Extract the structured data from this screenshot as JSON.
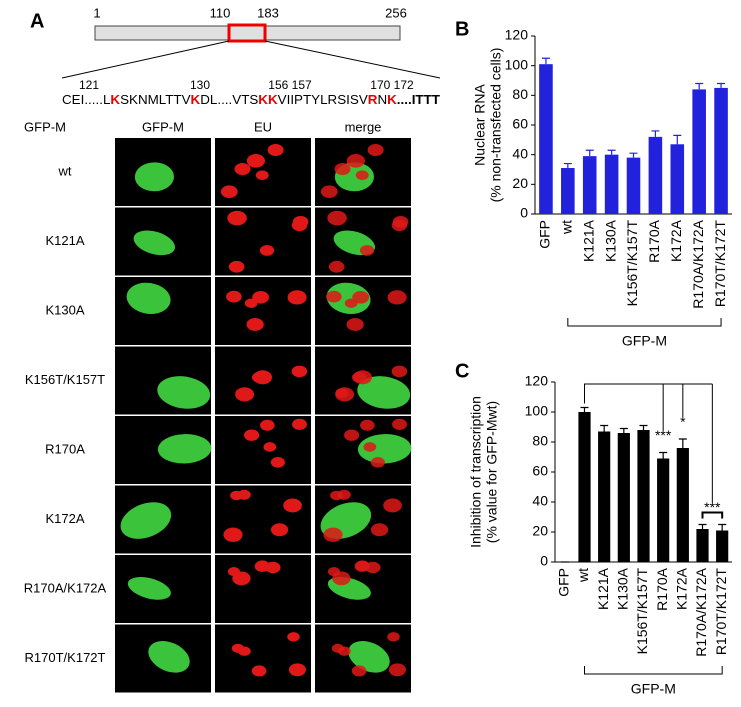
{
  "panel_a": {
    "label": "A",
    "ruler_labels": [
      "1",
      "110",
      "183",
      "256"
    ],
    "sequence_numbers": [
      "121",
      "130",
      "156 157",
      "170 172"
    ],
    "sequence": [
      {
        "text": "CEI.....L"
      },
      {
        "text": "K",
        "highlight": true
      },
      {
        "text": "SKNMLTTV"
      },
      {
        "text": "K",
        "highlight": true
      },
      {
        "text": "DL....VTS"
      },
      {
        "text": "KK",
        "highlight": true
      },
      {
        "text": "VIIPTYLRSISV"
      },
      {
        "text": "R",
        "highlight": true
      },
      {
        "text": "N"
      },
      {
        "text": "K",
        "highlight": true
      },
      {
        "text": "....ITTT",
        "bold": true
      }
    ],
    "row_header": "GFP-M",
    "columns": [
      "GFP-M",
      "EU",
      "merge"
    ],
    "rows": [
      "wt",
      "K121A",
      "K130A",
      "K156T/K157T",
      "R170A",
      "K172A",
      "R170A/K172A",
      "R170T/K172T"
    ]
  },
  "chart_data": [
    {
      "type": "bar",
      "label": "B",
      "ylabel": [
        "Nuclear RNA",
        "(% non-transfected cells)"
      ],
      "categories": [
        "GFP",
        "wt",
        "K121A",
        "K130A",
        "K156T/K157T",
        "R170A",
        "K172A",
        "R170A/K172A",
        "R170T/K172T"
      ],
      "values": [
        101,
        31,
        39,
        40,
        38,
        52,
        47,
        84,
        85
      ],
      "errors": [
        4,
        3,
        4,
        3,
        3,
        4,
        6,
        4,
        3
      ],
      "color": "#2222dd",
      "ylim": [
        0,
        120
      ],
      "yticks": [
        0,
        20,
        40,
        60,
        80,
        100,
        120
      ],
      "group": {
        "label": "GFP-M",
        "from": 1,
        "to": 8
      }
    },
    {
      "type": "bar",
      "label": "C",
      "ylabel": [
        "Inhibition of transcription",
        "(% value for GFP-Mwt)"
      ],
      "categories": [
        "GFP",
        "wt",
        "K121A",
        "K130A",
        "K156T/K157T",
        "R170A",
        "K172A",
        "R170A/K172A",
        "R170T/K172T"
      ],
      "values": [
        0,
        100,
        87,
        86,
        88,
        69,
        76,
        22,
        21
      ],
      "errors": [
        0,
        3,
        4,
        3,
        3,
        4,
        6,
        3,
        4
      ],
      "color": "#000000",
      "ylim": [
        0,
        120
      ],
      "yticks": [
        0,
        20,
        40,
        60,
        80,
        100,
        120
      ],
      "annotations": [
        {
          "text": "***",
          "index": 5
        },
        {
          "text": "*",
          "index": 6
        },
        {
          "text": "***",
          "index": 7.5
        }
      ],
      "group": {
        "label": "GFP-M",
        "from": 1,
        "to": 8
      }
    }
  ]
}
